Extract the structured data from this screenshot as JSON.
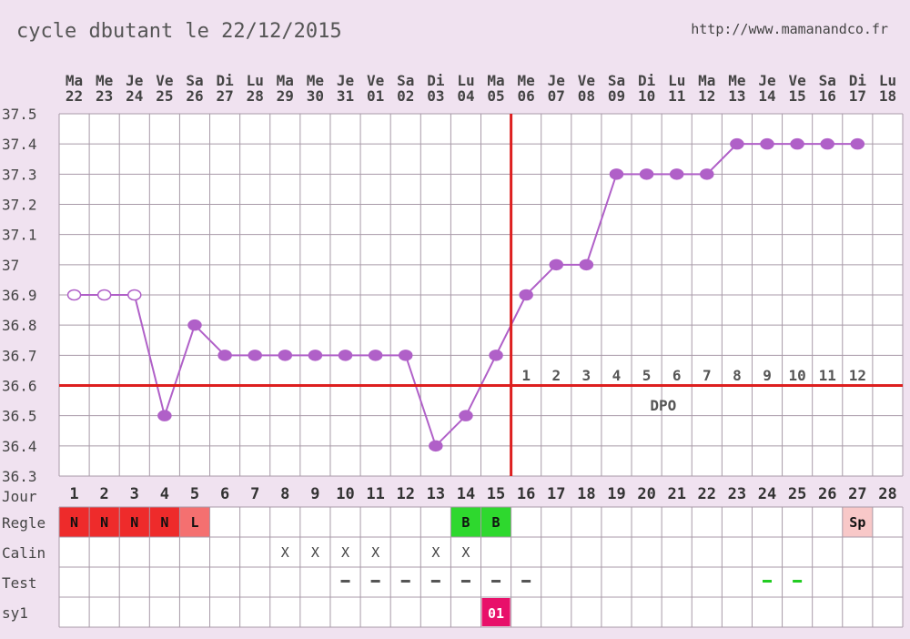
{
  "header": {
    "title": "cycle dbutant le 22/12/2015",
    "url": "http://www.mamanandco.fr"
  },
  "colors": {
    "background": "#f0e2f0",
    "cell": "#ffffff",
    "grid": "#a89aa8",
    "line": "#b060c8",
    "marker_fill": "#b060c8",
    "marker_open": "#ffffff",
    "coverline": "#dd1f1f",
    "text": "#444444",
    "dpo_text": "#555555",
    "regle_N": "#ee2b2b",
    "regle_L": "#f47070",
    "regle_B": "#2ed82e",
    "regle_Sp": "#f8c8c8",
    "sy1_badge": "#e8106a",
    "test_dash": "#555555",
    "test_dash_green": "#22cc22"
  },
  "chart_data": {
    "type": "line",
    "title": "cycle dbutant le 22/12/2015",
    "days": [
      "Ma",
      "Me",
      "Je",
      "Ve",
      "Sa",
      "Di",
      "Lu",
      "Ma",
      "Me",
      "Je",
      "Ve",
      "Sa",
      "Di",
      "Lu",
      "Ma",
      "Me",
      "Je",
      "Ve",
      "Sa",
      "Di",
      "Lu",
      "Ma",
      "Me",
      "Je",
      "Ve",
      "Sa",
      "Di",
      "Lu"
    ],
    "dates": [
      "22",
      "23",
      "24",
      "25",
      "26",
      "27",
      "28",
      "29",
      "30",
      "31",
      "01",
      "02",
      "03",
      "04",
      "05",
      "06",
      "07",
      "08",
      "09",
      "10",
      "11",
      "12",
      "13",
      "14",
      "15",
      "16",
      "17",
      "18"
    ],
    "cycle_days": [
      1,
      2,
      3,
      4,
      5,
      6,
      7,
      8,
      9,
      10,
      11,
      12,
      13,
      14,
      15,
      16,
      17,
      18,
      19,
      20,
      21,
      22,
      23,
      24,
      25,
      26,
      27,
      28
    ],
    "temperatures": [
      36.9,
      36.9,
      36.9,
      36.5,
      36.8,
      36.7,
      36.7,
      36.7,
      36.7,
      36.7,
      36.7,
      36.7,
      36.4,
      36.5,
      36.7,
      36.9,
      37.0,
      37.0,
      37.3,
      37.3,
      37.3,
      37.3,
      37.4,
      37.4,
      37.4,
      37.4,
      37.4,
      null
    ],
    "open_marker_days": [
      1,
      2,
      3
    ],
    "ylim": [
      36.3,
      37.5
    ],
    "y_ticks": [
      "37.5",
      "37.4",
      "37.3",
      "37.2",
      "37.1",
      "37",
      "36.9",
      "36.8",
      "36.7",
      "36.6",
      "36.5",
      "36.4",
      "36.3"
    ],
    "coverline": 36.6,
    "ovulation_day": 15,
    "dpo_labels": [
      "1",
      "2",
      "3",
      "4",
      "5",
      "6",
      "7",
      "8",
      "9",
      "10",
      "11",
      "12"
    ],
    "dpo_text": "DPO",
    "grid": true
  },
  "table": {
    "row_labels": [
      "Jour",
      "Regle",
      "Calin",
      "Test",
      "sy1"
    ],
    "regle": [
      {
        "day": 1,
        "label": "N",
        "kind": "N"
      },
      {
        "day": 2,
        "label": "N",
        "kind": "N"
      },
      {
        "day": 3,
        "label": "N",
        "kind": "N"
      },
      {
        "day": 4,
        "label": "N",
        "kind": "N"
      },
      {
        "day": 5,
        "label": "L",
        "kind": "L"
      },
      {
        "day": 14,
        "label": "B",
        "kind": "B"
      },
      {
        "day": 15,
        "label": "B",
        "kind": "B"
      },
      {
        "day": 27,
        "label": "Sp",
        "kind": "Sp"
      }
    ],
    "calin": [
      {
        "day": 8,
        "label": "X"
      },
      {
        "day": 9,
        "label": "X"
      },
      {
        "day": 10,
        "label": "X"
      },
      {
        "day": 11,
        "label": "X"
      },
      {
        "day": 13,
        "label": "X"
      },
      {
        "day": 14,
        "label": "X"
      }
    ],
    "test": [
      {
        "day": 10,
        "kind": "neg"
      },
      {
        "day": 11,
        "kind": "neg"
      },
      {
        "day": 12,
        "kind": "neg"
      },
      {
        "day": 13,
        "kind": "neg"
      },
      {
        "day": 14,
        "kind": "neg"
      },
      {
        "day": 15,
        "kind": "neg"
      },
      {
        "day": 16,
        "kind": "neg"
      },
      {
        "day": 24,
        "kind": "pos"
      },
      {
        "day": 25,
        "kind": "pos"
      }
    ],
    "sy1": [
      {
        "day": 15,
        "label": "01"
      }
    ]
  }
}
